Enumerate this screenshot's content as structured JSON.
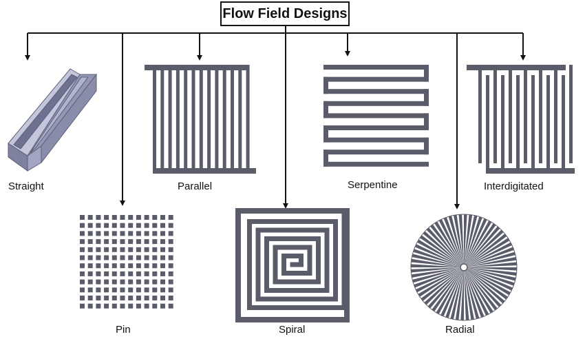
{
  "title": "Flow Field Designs",
  "designs": [
    {
      "id": "straight",
      "label": "Straight"
    },
    {
      "id": "parallel",
      "label": "Parallel"
    },
    {
      "id": "serpentine",
      "label": "Serpentine"
    },
    {
      "id": "interdigitated",
      "label": "Interdigitated"
    },
    {
      "id": "pin",
      "label": "Pin"
    },
    {
      "id": "spiral",
      "label": "Spiral"
    },
    {
      "id": "radial",
      "label": "Radial"
    }
  ],
  "colors": {
    "pattern": "#5a5c6a",
    "line": "#111111",
    "straight_face": "#a3a6c2",
    "straight_top": "#c4c7dc",
    "straight_side": "#7f829e"
  }
}
